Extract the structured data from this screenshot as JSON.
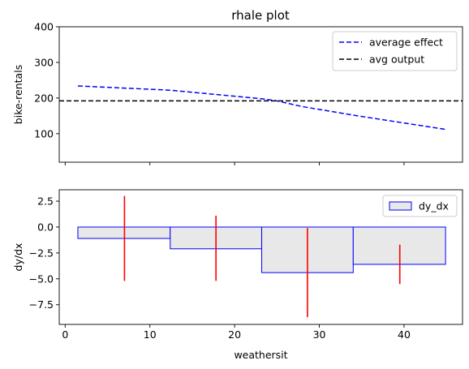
{
  "chart_data": [
    {
      "type": "line",
      "title": "rhale plot",
      "xlabel": "",
      "ylabel": "bike-rentals",
      "xlim": [
        -0.7,
        46.9
      ],
      "ylim": [
        20,
        400
      ],
      "yticks": [
        100,
        200,
        300,
        400
      ],
      "xticks": [
        0,
        10,
        20,
        30,
        40
      ],
      "show_xtick_labels": false,
      "legend": "top-right",
      "series": [
        {
          "name": "average effect",
          "color": "#0000ff",
          "style": "dashed",
          "x": [
            1.5,
            12.4,
            23.2,
            25.0,
            28.0,
            34.0,
            44.9
          ],
          "y": [
            234,
            222,
            198,
            192,
            176,
            152,
            112
          ]
        },
        {
          "name": "avg output",
          "color": "#000000",
          "style": "dashed",
          "hline": 192
        }
      ]
    },
    {
      "type": "bar",
      "xlabel": "weathersit",
      "ylabel": "dy/dx",
      "xlim": [
        -0.7,
        46.9
      ],
      "ylim": [
        -9.4,
        3.6
      ],
      "yticks": [
        -7.5,
        -5.0,
        -2.5,
        0.0,
        2.5
      ],
      "ytick_labels": [
        "−7.5",
        "−5.0",
        "−2.5",
        "0.0",
        "2.5"
      ],
      "xticks": [
        0,
        10,
        20,
        30,
        40
      ],
      "legend": "top-right",
      "series": [
        {
          "name": "dy_dx",
          "fill": "#e8e8e8",
          "edge": "#0000ff",
          "bins": [
            {
              "x0": 1.5,
              "x1": 12.4,
              "value": -1.1
            },
            {
              "x0": 12.4,
              "x1": 23.2,
              "value": -2.1
            },
            {
              "x0": 23.2,
              "x1": 34.0,
              "value": -4.4
            },
            {
              "x0": 34.0,
              "x1": 44.9,
              "value": -3.6
            }
          ]
        }
      ],
      "error_bars": {
        "color": "#ff0000",
        "items": [
          {
            "x": 7.0,
            "low": -5.2,
            "high": 3.0
          },
          {
            "x": 17.8,
            "low": -5.2,
            "high": 1.1
          },
          {
            "x": 28.6,
            "low": -8.7,
            "high": -0.1
          },
          {
            "x": 39.5,
            "low": -5.5,
            "high": -1.7
          }
        ]
      }
    }
  ]
}
